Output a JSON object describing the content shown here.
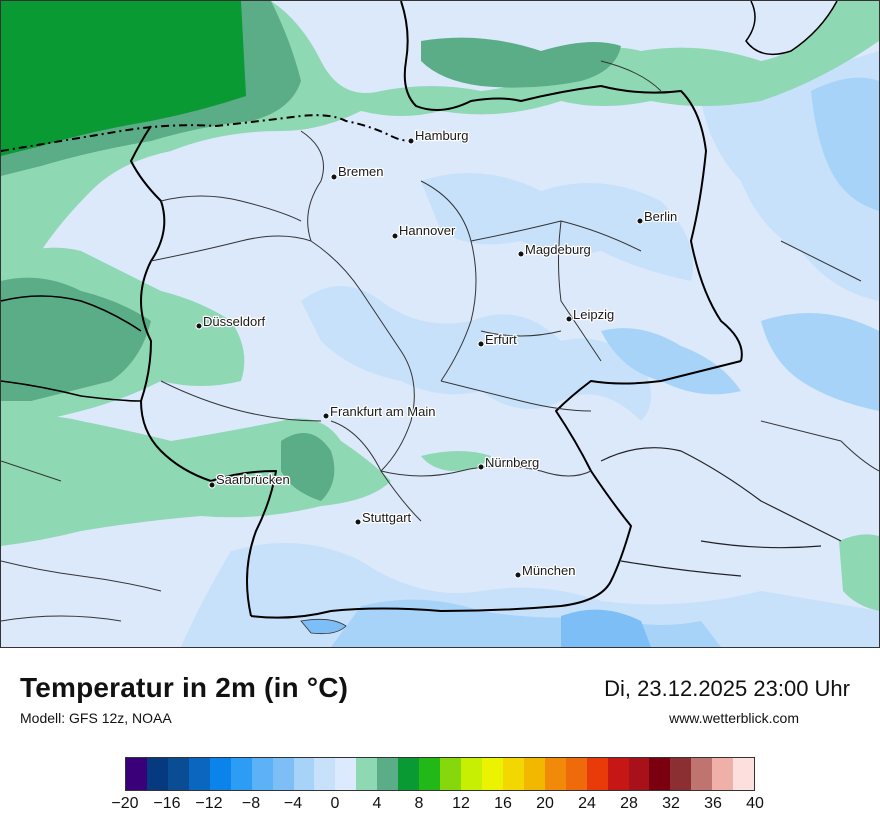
{
  "title": "Temperatur in 2m (in °C)",
  "model": "Modell: GFS 12z, NOAA",
  "datetime": "Di, 23.12.2025 23:00 Uhr",
  "website": "www.wetterblick.com",
  "cities": [
    {
      "name": "Hamburg"
    },
    {
      "name": "Bremen"
    },
    {
      "name": "Berlin"
    },
    {
      "name": "Hannover"
    },
    {
      "name": "Magdeburg"
    },
    {
      "name": "Leipzig"
    },
    {
      "name": "Düsseldorf"
    },
    {
      "name": "Erfurt"
    },
    {
      "name": "Frankfurt am Main"
    },
    {
      "name": "Nürnberg"
    },
    {
      "name": "Saarbrücken"
    },
    {
      "name": "Stuttgart"
    },
    {
      "name": "München"
    }
  ],
  "legend": {
    "colors": [
      "#3a007a",
      "#063a80",
      "#0a4d95",
      "#0b66c0",
      "#0a84ea",
      "#2c9cf5",
      "#5cb1f7",
      "#7cbef5",
      "#a7d3f8",
      "#c7e1fa",
      "#dbeafc",
      "#8fd8b4",
      "#5aad86",
      "#0a9a33",
      "#22b818",
      "#86d80c",
      "#c7ef04",
      "#ecf300",
      "#f2d800",
      "#f2b800",
      "#f08a08",
      "#ef6a0a",
      "#e93a0a",
      "#c61616",
      "#a8101a",
      "#7a0010",
      "#8c2f33",
      "#c0746f",
      "#f0b0aa",
      "#fde0de"
    ],
    "ticks": [
      "−20",
      "−16",
      "−12",
      "−8",
      "−4",
      "0",
      "4",
      "8",
      "12",
      "16",
      "20",
      "24",
      "28",
      "32",
      "36",
      "40"
    ]
  }
}
